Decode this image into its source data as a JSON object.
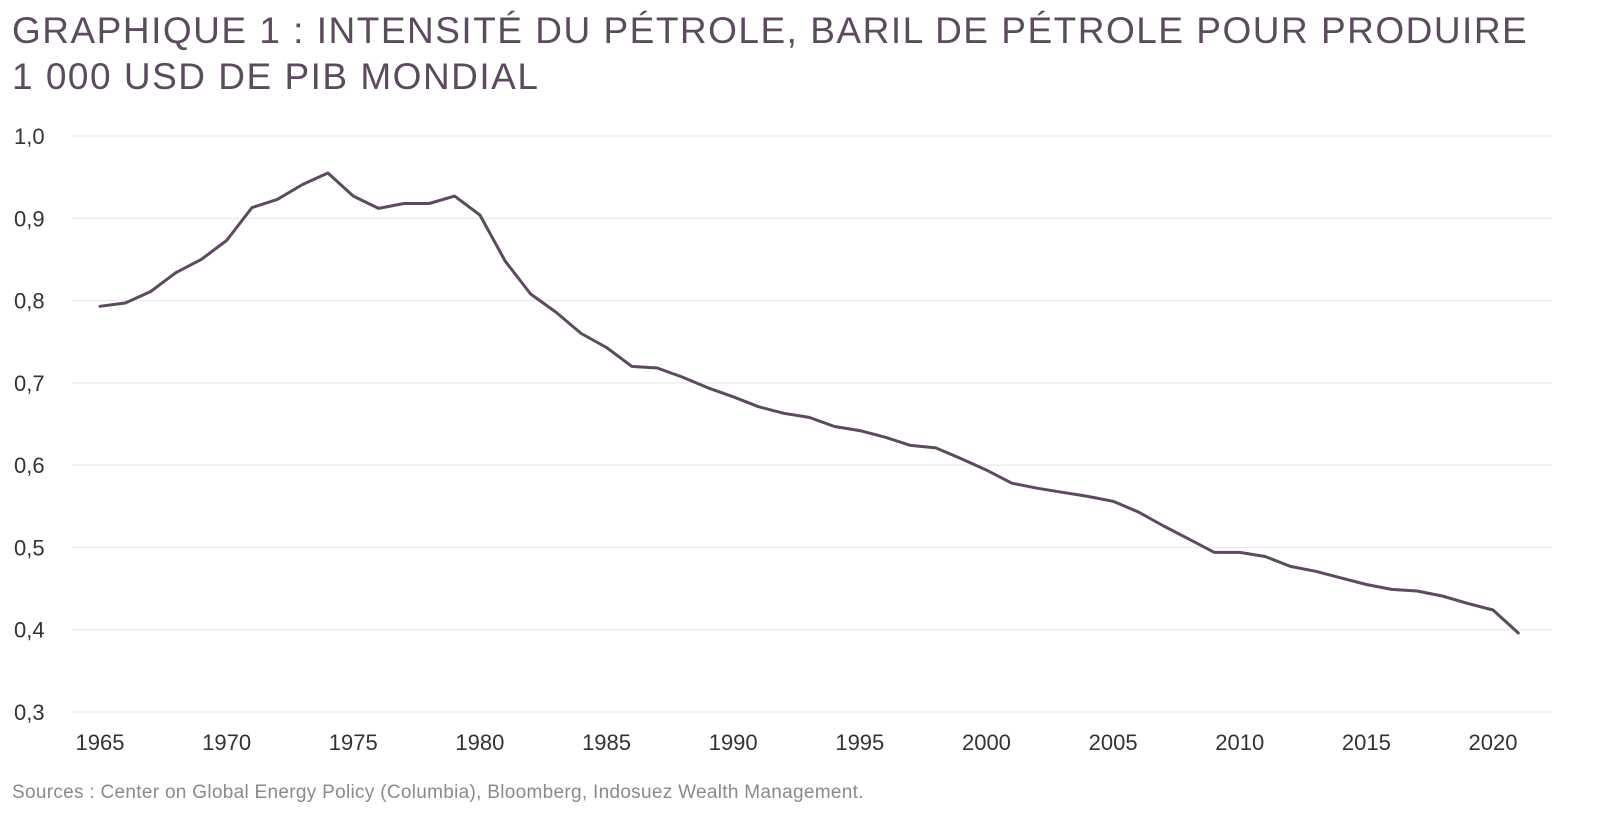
{
  "title_line1": "GRAPHIQUE 1 : INTENSITÉ DU PÉTROLE, BARIL DE PÉTROLE POUR PRODUIRE",
  "title_line2": "1 000 USD DE PIB MONDIAL",
  "source": "Sources : Center on Global Energy Policy (Columbia), Bloomberg, Indosuez Wealth Management.",
  "colors": {
    "line": "#5c4a5e",
    "grid": "#e4e4e4",
    "title": "#5c4a5e"
  },
  "chart_data": {
    "type": "line",
    "title": "GRAPHIQUE 1 : INTENSITÉ DU PÉTROLE, BARIL DE PÉTROLE POUR PRODUIRE 1 000 USD DE PIB MONDIAL",
    "xlabel": "",
    "ylabel": "",
    "ylim": [
      0.3,
      1.0
    ],
    "xlim": [
      1965,
      2022
    ],
    "grid": true,
    "y_ticks": [
      {
        "value": 1.0,
        "label": "1,0"
      },
      {
        "value": 0.9,
        "label": "0,9"
      },
      {
        "value": 0.8,
        "label": "0,8"
      },
      {
        "value": 0.7,
        "label": "0,7"
      },
      {
        "value": 0.6,
        "label": "0,6"
      },
      {
        "value": 0.5,
        "label": "0,5"
      },
      {
        "value": 0.4,
        "label": "0,4"
      },
      {
        "value": 0.3,
        "label": "0,3"
      }
    ],
    "x_ticks": [
      {
        "value": 1965,
        "label": "1965"
      },
      {
        "value": 1970,
        "label": "1970"
      },
      {
        "value": 1975,
        "label": "1975"
      },
      {
        "value": 1980,
        "label": "1980"
      },
      {
        "value": 1985,
        "label": "1985"
      },
      {
        "value": 1990,
        "label": "1990"
      },
      {
        "value": 1995,
        "label": "1995"
      },
      {
        "value": 2000,
        "label": "2000"
      },
      {
        "value": 2005,
        "label": "2005"
      },
      {
        "value": 2010,
        "label": "2010"
      },
      {
        "value": 2015,
        "label": "2015"
      },
      {
        "value": 2020,
        "label": "2020"
      }
    ],
    "series": [
      {
        "x": [
          1965,
          1966,
          1967,
          1968,
          1969,
          1970,
          1971,
          1972,
          1973,
          1974,
          1975,
          1976,
          1977,
          1978,
          1979,
          1980,
          1981,
          1982,
          1983,
          1984,
          1985,
          1986,
          1987,
          1988,
          1989,
          1990,
          1991,
          1992,
          1993,
          1994,
          1995,
          1996,
          1997,
          1998,
          1999,
          2000,
          2001,
          2002,
          2003,
          2004,
          2005,
          2006,
          2007,
          2008,
          2009,
          2010,
          2011,
          2012,
          2013,
          2014,
          2015,
          2016,
          2017,
          2018,
          2019,
          2020,
          2021
        ],
        "values": [
          0.793,
          0.797,
          0.811,
          0.834,
          0.85,
          0.873,
          0.913,
          0.923,
          0.941,
          0.955,
          0.927,
          0.912,
          0.918,
          0.918,
          0.927,
          0.904,
          0.848,
          0.808,
          0.786,
          0.76,
          0.743,
          0.72,
          0.718,
          0.707,
          0.694,
          0.683,
          0.671,
          0.663,
          0.658,
          0.647,
          0.642,
          0.634,
          0.624,
          0.621,
          0.608,
          0.594,
          0.578,
          0.572,
          0.567,
          0.562,
          0.556,
          0.543,
          0.526,
          0.51,
          0.494,
          0.494,
          0.489,
          0.477,
          0.471,
          0.463,
          0.455,
          0.449,
          0.447,
          0.441,
          0.432,
          0.424,
          0.396
        ]
      }
    ]
  }
}
